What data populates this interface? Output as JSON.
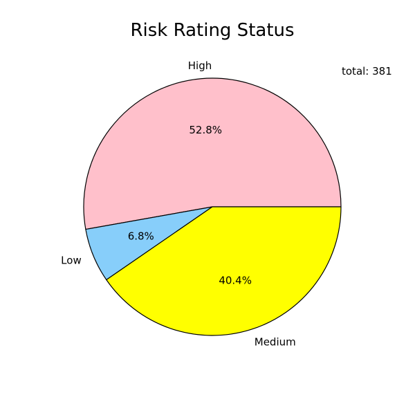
{
  "chart_data": {
    "type": "pie",
    "title": "Risk Rating Status",
    "annotation": "total: 381",
    "slices": [
      {
        "label": "High",
        "value": 52.8,
        "display": "52.8%",
        "color": "#FFC0CB"
      },
      {
        "label": "Low",
        "value": 6.8,
        "display": "6.8%",
        "color": "#87CEFA"
      },
      {
        "label": "Medium",
        "value": 40.4,
        "display": "40.4%",
        "color": "#FFFF00"
      }
    ],
    "start_angle": "0deg (3 o'clock), counter-clockwise",
    "edge_color": "#000000"
  }
}
